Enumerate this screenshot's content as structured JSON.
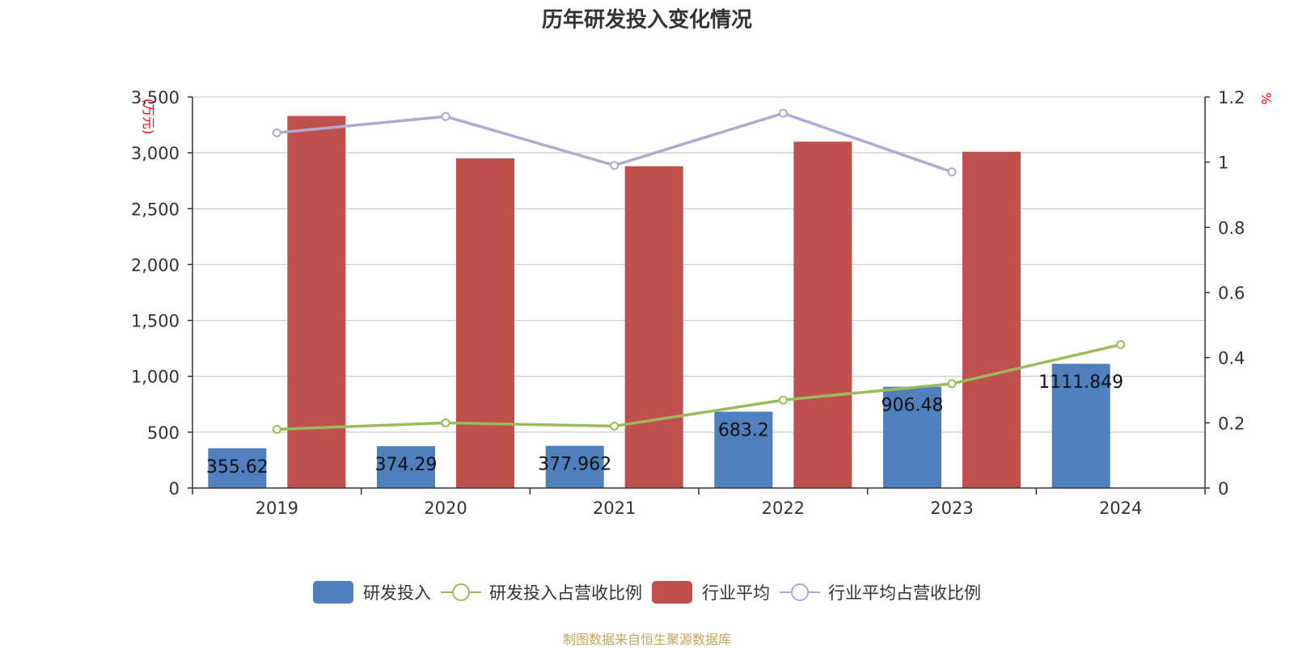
{
  "title": "历年研发投入变化情况",
  "source": "制图数据来自恒生聚源数据库",
  "legend": [
    {
      "name": "研发投入",
      "kind": "bar",
      "color": "#4f7fbd"
    },
    {
      "name": "研发投入占营收比例",
      "kind": "line",
      "color": "#9bbb59"
    },
    {
      "name": "行业平均",
      "kind": "bar",
      "color": "#c0504d"
    },
    {
      "name": "行业平均占营收比例",
      "kind": "line",
      "color": "#b3a8d3"
    }
  ],
  "chart_data": {
    "type": "bar",
    "title": "历年研发投入变化情况",
    "categories": [
      "2019",
      "2020",
      "2021",
      "2022",
      "2023",
      "2024"
    ],
    "y_left": {
      "unit": "万元",
      "range": [
        0,
        3500
      ],
      "ticks": [
        "0",
        "500",
        "1,000",
        "1,500",
        "2,000",
        "2,500",
        "3,000",
        "3,500"
      ]
    },
    "y_right": {
      "unit": "%",
      "range": [
        0,
        1.2
      ],
      "ticks": [
        "0",
        "0.2",
        "0.4",
        "0.6",
        "0.8",
        "1",
        "1.2"
      ]
    },
    "grid": true,
    "legend_position": "bottom",
    "series": [
      {
        "name": "研发投入",
        "type": "bar",
        "axis": "left",
        "color": "#4f7fbd",
        "values": [
          355.62,
          374.29,
          377.962,
          683.2,
          906.48,
          1111.849
        ],
        "labels": [
          "355.62",
          "374.29",
          "377.962",
          "683.2",
          "906.48",
          "1111.849"
        ]
      },
      {
        "name": "行业平均",
        "type": "bar",
        "axis": "left",
        "color": "#c0504d",
        "values": [
          3330,
          2950,
          2880,
          3100,
          3010,
          null
        ]
      },
      {
        "name": "研发投入占营收比例",
        "type": "line",
        "axis": "right",
        "color": "#9bbb59",
        "values": [
          0.18,
          0.2,
          0.19,
          0.27,
          0.32,
          0.44
        ]
      },
      {
        "name": "行业平均占营收比例",
        "type": "line",
        "axis": "right",
        "color": "#b3a8d3",
        "values": [
          1.09,
          1.14,
          0.99,
          1.15,
          0.97,
          null
        ]
      }
    ]
  }
}
